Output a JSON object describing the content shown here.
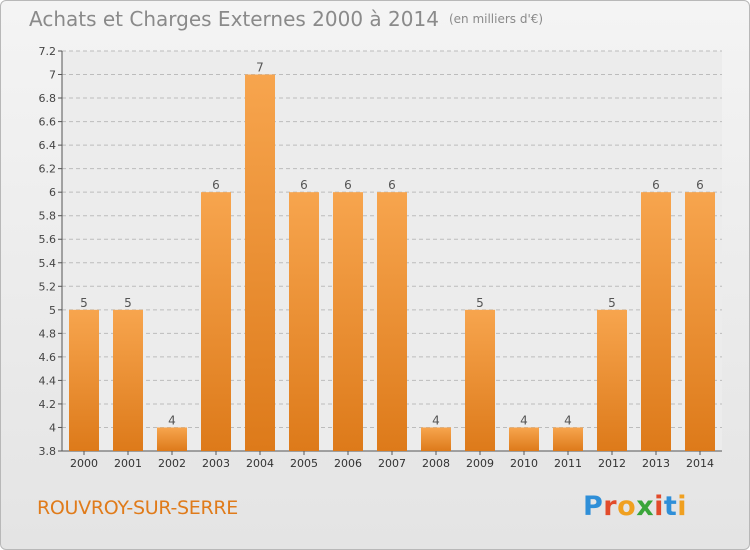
{
  "chart_data": {
    "type": "bar",
    "title": "Achats et Charges Externes 2000 à 2014",
    "unit": "(en milliers d'€)",
    "categories": [
      "2000",
      "2001",
      "2002",
      "2003",
      "2004",
      "2005",
      "2006",
      "2007",
      "2008",
      "2009",
      "2010",
      "2011",
      "2012",
      "2013",
      "2014"
    ],
    "values": [
      5,
      5,
      4,
      6,
      7,
      6,
      6,
      6,
      4,
      5,
      4,
      4,
      5,
      6,
      6
    ],
    "data_labels": [
      "5",
      "5",
      "4",
      "6",
      "7",
      "6",
      "6",
      "6",
      "4",
      "5",
      "4",
      "4",
      "5",
      "6",
      "6"
    ],
    "ylim": [
      3.8,
      7.2
    ],
    "yticks": [
      3.8,
      4,
      4.2,
      4.4,
      4.6,
      4.8,
      5,
      5.2,
      5.4,
      5.6,
      5.8,
      6,
      6.2,
      6.4,
      6.6,
      6.8,
      7,
      7.2
    ],
    "ytick_labels": [
      "3.8",
      "4",
      "4.2",
      "4.4",
      "4.6",
      "4.8",
      "5",
      "5.2",
      "5.4",
      "5.6",
      "5.8",
      "6",
      "6.2",
      "6.4",
      "6.6",
      "6.8",
      "7",
      "7.2"
    ],
    "grid": true,
    "bar_color_top": "#f7a54e",
    "bar_color_bottom": "#dd7a1a"
  },
  "footer": {
    "commune": "ROUVROY-SUR-SERRE",
    "logo_letters": [
      "P",
      "r",
      "o",
      "x",
      "i",
      "t",
      "i"
    ],
    "logo_colors": [
      "#2f8fd8",
      "#e24b2b",
      "#f0a020",
      "#3aa53a",
      "#e24b2b",
      "#2f8fd8",
      "#f0a020"
    ]
  }
}
